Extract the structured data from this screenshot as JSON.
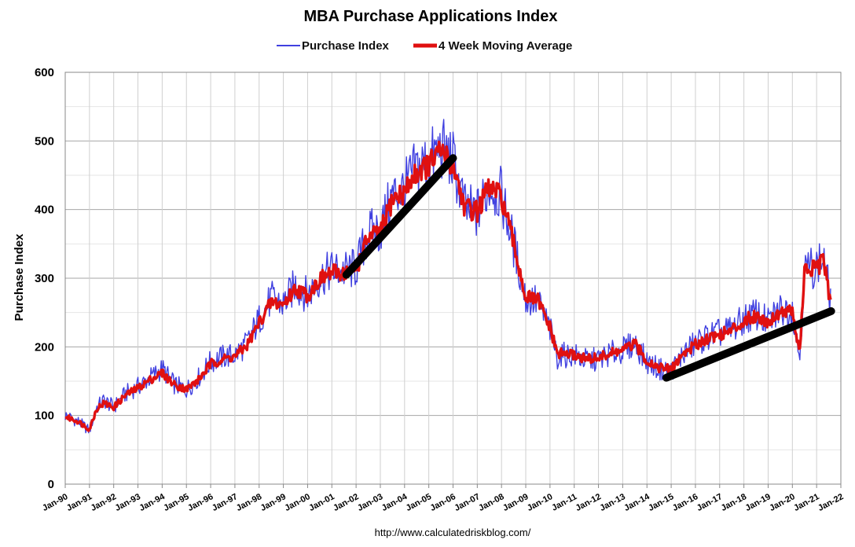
{
  "chart_data": {
    "type": "line",
    "title": "MBA Purchase Applications Index",
    "ylabel": "Purchase Index",
    "xlabel": "",
    "ylim": [
      0,
      600
    ],
    "yticks": [
      "0",
      "100",
      "200",
      "300",
      "400",
      "500",
      "600"
    ],
    "xlim": [
      1990,
      2022
    ],
    "xticks": [
      "Jan-90",
      "Jan-91",
      "Jan-92",
      "Jan-93",
      "Jan-94",
      "Jan-95",
      "Jan-96",
      "Jan-97",
      "Jan-98",
      "Jan-99",
      "Jan-00",
      "Jan-01",
      "Jan-02",
      "Jan-03",
      "Jan-04",
      "Jan-05",
      "Jan-06",
      "Jan-07",
      "Jan-08",
      "Jan-09",
      "Jan-10",
      "Jan-11",
      "Jan-12",
      "Jan-13",
      "Jan-14",
      "Jan-15",
      "Jan-16",
      "Jan-17",
      "Jan-18",
      "Jan-19",
      "Jan-20",
      "Jan-21",
      "Jan-22"
    ],
    "grid": true,
    "legend_position": "top-center",
    "series": [
      {
        "name": "Purchase Index",
        "color": "#4040e0",
        "x": [
          1990.0,
          1990.5,
          1991.0,
          1991.3,
          1991.6,
          1992.0,
          1992.5,
          1993.0,
          1993.5,
          1994.0,
          1994.5,
          1995.0,
          1995.5,
          1996.0,
          1996.5,
          1997.0,
          1997.5,
          1998.0,
          1998.5,
          1999.0,
          1999.5,
          2000.0,
          2000.5,
          2001.0,
          2001.5,
          2002.0,
          2002.5,
          2003.0,
          2003.5,
          2004.0,
          2004.5,
          2005.0,
          2005.5,
          2006.0,
          2006.5,
          2007.0,
          2007.5,
          2008.0,
          2008.5,
          2009.0,
          2009.5,
          2010.0,
          2010.3,
          2010.5,
          2011.0,
          2011.5,
          2012.0,
          2012.5,
          2013.0,
          2013.5,
          2014.0,
          2014.5,
          2015.0,
          2015.5,
          2016.0,
          2016.5,
          2017.0,
          2017.5,
          2018.0,
          2018.5,
          2019.0,
          2019.5,
          2020.0,
          2020.2,
          2020.3,
          2020.5,
          2021.0,
          2021.3,
          2021.6
        ],
        "values": [
          100,
          92,
          78,
          112,
          122,
          112,
          132,
          142,
          155,
          168,
          145,
          138,
          155,
          178,
          185,
          188,
          205,
          240,
          270,
          262,
          290,
          275,
          300,
          312,
          310,
          315,
          365,
          370,
          420,
          430,
          460,
          470,
          490,
          470,
          400,
          395,
          435,
          420,
          350,
          270,
          265,
          225,
          185,
          188,
          188,
          180,
          182,
          190,
          195,
          205,
          178,
          168,
          165,
          190,
          205,
          215,
          220,
          225,
          240,
          248,
          235,
          255,
          255,
          205,
          185,
          312,
          318,
          330,
          258
        ]
      },
      {
        "name": "4 Week Moving Average",
        "color": "#e01010",
        "x": [
          1990.0,
          1990.5,
          1991.0,
          1991.3,
          1991.6,
          1992.0,
          1992.5,
          1993.0,
          1993.5,
          1994.0,
          1994.5,
          1995.0,
          1995.5,
          1996.0,
          1996.5,
          1997.0,
          1997.5,
          1998.0,
          1998.5,
          1999.0,
          1999.5,
          2000.0,
          2000.5,
          2001.0,
          2001.5,
          2002.0,
          2002.5,
          2003.0,
          2003.5,
          2004.0,
          2004.5,
          2005.0,
          2005.5,
          2006.0,
          2006.5,
          2007.0,
          2007.5,
          2008.0,
          2008.5,
          2009.0,
          2009.5,
          2010.0,
          2010.3,
          2010.5,
          2011.0,
          2011.5,
          2012.0,
          2012.5,
          2013.0,
          2013.5,
          2014.0,
          2014.5,
          2015.0,
          2015.5,
          2016.0,
          2016.5,
          2017.0,
          2017.5,
          2018.0,
          2018.5,
          2019.0,
          2019.5,
          2020.0,
          2020.2,
          2020.3,
          2020.5,
          2021.0,
          2021.3,
          2021.6
        ],
        "values": [
          98,
          92,
          80,
          110,
          118,
          112,
          130,
          140,
          152,
          162,
          145,
          138,
          152,
          175,
          182,
          186,
          202,
          235,
          265,
          262,
          285,
          275,
          298,
          308,
          308,
          312,
          360,
          365,
          415,
          425,
          455,
          465,
          485,
          465,
          402,
          398,
          432,
          418,
          350,
          272,
          268,
          228,
          190,
          190,
          188,
          182,
          184,
          190,
          195,
          204,
          180,
          170,
          167,
          190,
          203,
          213,
          218,
          224,
          238,
          246,
          236,
          252,
          252,
          210,
          190,
          310,
          315,
          325,
          255
        ]
      }
    ],
    "annotations": [
      {
        "name": "trend-line-2001-2006",
        "color": "#000000",
        "x": [
          2001.6,
          2006.0
        ],
        "values": [
          305,
          475
        ]
      },
      {
        "name": "trend-line-2015-2021",
        "color": "#000000",
        "x": [
          2014.8,
          2021.6
        ],
        "values": [
          155,
          252
        ]
      }
    ],
    "source": "http://www.calculatedriskblog.com/"
  }
}
